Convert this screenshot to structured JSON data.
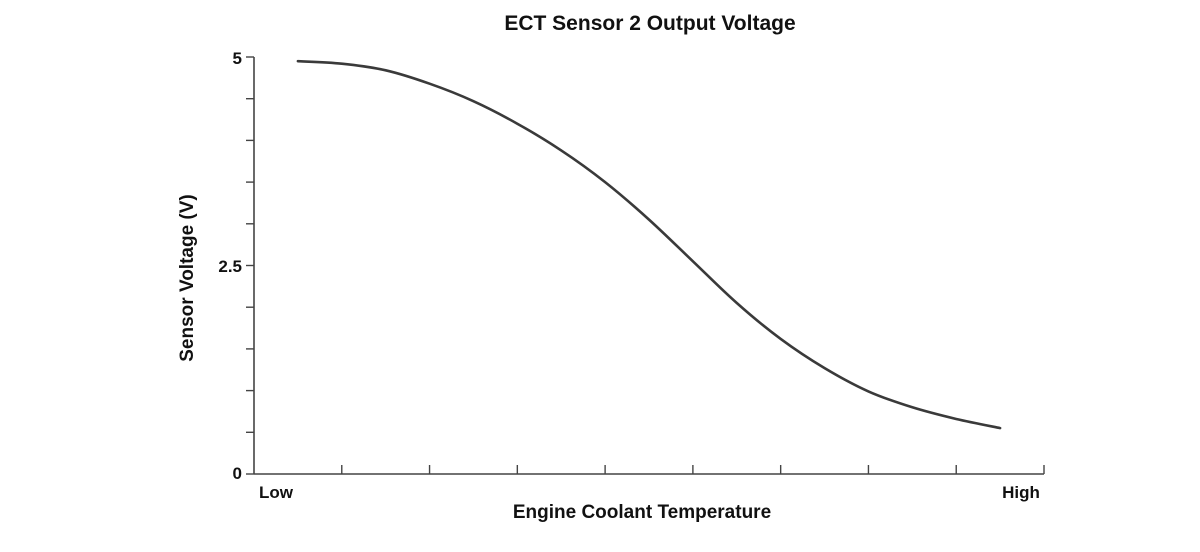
{
  "chart_data": {
    "type": "line",
    "title": "ECT Sensor 2 Output Voltage",
    "xlabel": "Engine Coolant Temperature",
    "ylabel": "Sensor Voltage (V)",
    "x_tick_labels": [
      "Low",
      "High"
    ],
    "y_tick_labels": [
      "0",
      "2.5",
      "5"
    ],
    "xlim": [
      0,
      9
    ],
    "ylim": [
      0,
      5
    ],
    "x_minor_ticks": 9,
    "y_minor_ticks": 10,
    "grid": false,
    "legend": "none",
    "series": [
      {
        "color": "#3a3a3a",
        "points": [
          {
            "x": 0.5,
            "y": 4.95
          },
          {
            "x": 1.0,
            "y": 4.92
          },
          {
            "x": 1.5,
            "y": 4.84
          },
          {
            "x": 2.0,
            "y": 4.68
          },
          {
            "x": 2.5,
            "y": 4.47
          },
          {
            "x": 3.0,
            "y": 4.2
          },
          {
            "x": 3.5,
            "y": 3.88
          },
          {
            "x": 4.0,
            "y": 3.5
          },
          {
            "x": 4.5,
            "y": 3.05
          },
          {
            "x": 5.0,
            "y": 2.55
          },
          {
            "x": 5.5,
            "y": 2.05
          },
          {
            "x": 6.0,
            "y": 1.62
          },
          {
            "x": 6.5,
            "y": 1.27
          },
          {
            "x": 7.0,
            "y": 0.99
          },
          {
            "x": 7.5,
            "y": 0.8
          },
          {
            "x": 8.0,
            "y": 0.66
          },
          {
            "x": 8.5,
            "y": 0.55
          }
        ]
      }
    ]
  }
}
